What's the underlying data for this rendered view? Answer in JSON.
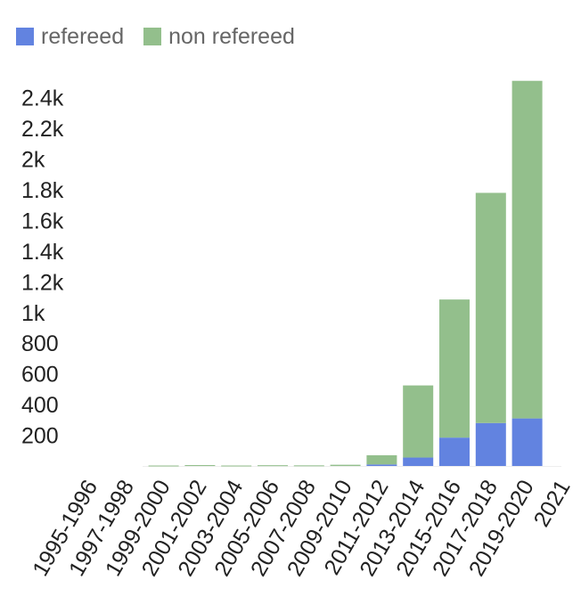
{
  "colors": {
    "refereed": "#6283e0",
    "non_refereed": "#93bf8c"
  },
  "chart_data": {
    "type": "bar",
    "stacked": true,
    "legend_position": "top-left",
    "grid": false,
    "categories": [
      "1995-1996",
      "1997-1998",
      "1999-2000",
      "2001-2002",
      "2003-2004",
      "2005-2006",
      "2007-2008",
      "2009-2010",
      "2011-2012",
      "2013-2014",
      "2015-2016",
      "2017-2018",
      "2019-2020",
      "2021"
    ],
    "series": [
      {
        "name": "refereed",
        "values": [
          0,
          0,
          0,
          0,
          0,
          0,
          0,
          0,
          10,
          55,
          185,
          280,
          310,
          0
        ]
      },
      {
        "name": "non refereed",
        "values": [
          0,
          0,
          3,
          6,
          3,
          5,
          4,
          8,
          60,
          470,
          900,
          1500,
          2200,
          0
        ]
      }
    ],
    "y_ticks": [
      "200",
      "400",
      "600",
      "800",
      "1k",
      "1.2k",
      "1.4k",
      "1.6k",
      "1.8k",
      "2k",
      "2.2k",
      "2.4k"
    ],
    "y_tick_values": [
      200,
      400,
      600,
      800,
      1000,
      1200,
      1400,
      1600,
      1800,
      2000,
      2200,
      2400
    ],
    "ylim": [
      0,
      2520
    ],
    "title": "",
    "xlabel": "",
    "ylabel": ""
  }
}
